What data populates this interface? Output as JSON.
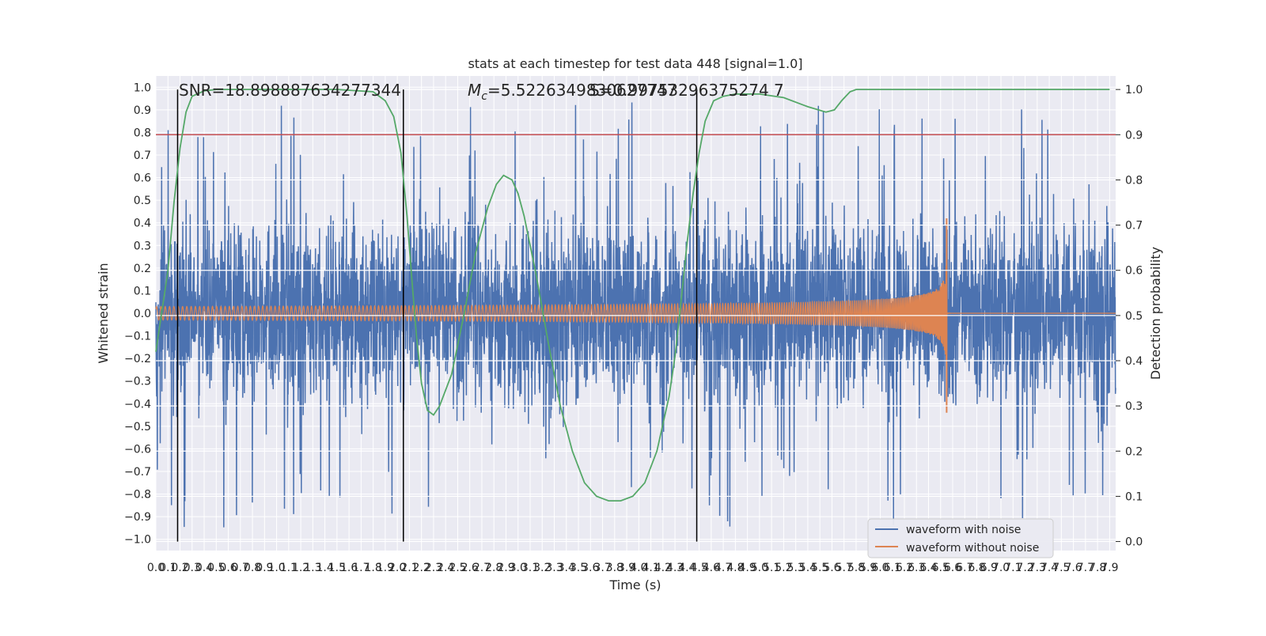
{
  "chart_data": {
    "type": "line",
    "title": "stats at each timestep for test data 448 [signal=1.0]",
    "xlabel": "Time (s)",
    "ylabel_left": "Whitened strain",
    "ylabel_right": "Detection probability",
    "xlim": [
      0.0,
      7.95
    ],
    "ylim_left": [
      -1.05,
      1.05
    ],
    "ylim_right": [
      -0.02,
      1.03
    ],
    "grid": true,
    "legend_position": "bottom-right",
    "x_ticks": [
      "0.0",
      "0.1",
      "0.2",
      "0.3",
      "0.4",
      "0.5",
      "0.6",
      "0.7",
      "0.8",
      "0.9",
      "1.0",
      "1.1",
      "1.2",
      "1.3",
      "1.4",
      "1.5",
      "1.6",
      "1.7",
      "1.8",
      "1.9",
      "2.0",
      "2.1",
      "2.2",
      "2.3",
      "2.4",
      "2.5",
      "2.6",
      "2.7",
      "2.8",
      "2.9",
      "3.0",
      "3.1",
      "3.2",
      "3.3",
      "3.4",
      "3.5",
      "3.6",
      "3.7",
      "3.8",
      "3.9",
      "4.0",
      "4.1",
      "4.2",
      "4.3",
      "4.4",
      "4.5",
      "4.6",
      "4.7",
      "4.8",
      "4.9",
      "5.0",
      "5.1",
      "5.2",
      "5.3",
      "5.4",
      "5.5",
      "5.6",
      "5.7",
      "5.8",
      "5.9",
      "6.0",
      "6.1",
      "6.2",
      "6.3",
      "6.4",
      "6.5",
      "6.6",
      "6.7",
      "6.8",
      "6.9",
      "7.0",
      "7.1",
      "7.2",
      "7.3",
      "7.4",
      "7.5",
      "7.6",
      "7.7",
      "7.8",
      "7.9"
    ],
    "y_ticks_left": [
      "1.0",
      "0.9",
      "0.8",
      "0.7",
      "0.6",
      "0.5",
      "0.4",
      "0.3",
      "0.2",
      "0.1",
      "0.0",
      "−0.1",
      "−0.2",
      "−0.3",
      "−0.4",
      "−0.5",
      "−0.6",
      "−0.7",
      "−0.8",
      "−0.9",
      "−1.0"
    ],
    "y_ticks_right": [
      "1.0",
      "0.9",
      "0.8",
      "0.7",
      "0.6",
      "0.5",
      "0.4",
      "0.3",
      "0.2",
      "0.1",
      "0.0"
    ],
    "annotations": {
      "snr": "SNR=18.898887634277344",
      "mc_prefix": "M",
      "mc_subscript": "c",
      "mc_value": "=5.5226349830627747",
      "overlap": "S=0.99753296375274 7"
    },
    "threshold_right": 0.9,
    "vertical_lines_x": [
      0.18,
      2.05,
      4.48
    ],
    "merger_time": 6.55,
    "series": [
      {
        "name": "waveform with noise",
        "color": "#4c72b0",
        "envelope_note": "dense whitened noise mostly within ±0.35, peaks near ±0.95"
      },
      {
        "name": "waveform without noise",
        "color": "#dd8452",
        "start_amplitude": 0.03,
        "peak_amplitude": 0.42,
        "peak_time": 6.55
      },
      {
        "name": "detection probability",
        "color": "#55a868",
        "axis": "right",
        "x": [
          0.0,
          0.1,
          0.15,
          0.2,
          0.25,
          0.3,
          0.4,
          0.5,
          0.7,
          1.0,
          1.5,
          1.8,
          1.9,
          1.97,
          2.03,
          2.08,
          2.12,
          2.16,
          2.2,
          2.25,
          2.3,
          2.35,
          2.45,
          2.55,
          2.65,
          2.75,
          2.82,
          2.88,
          2.95,
          3.0,
          3.05,
          3.15,
          3.25,
          3.35,
          3.45,
          3.55,
          3.65,
          3.75,
          3.85,
          3.95,
          4.05,
          4.15,
          4.25,
          4.3,
          4.35,
          4.4,
          4.45,
          4.5,
          4.55,
          4.62,
          4.7,
          4.8,
          5.0,
          5.2,
          5.4,
          5.55,
          5.62,
          5.68,
          5.75,
          5.8,
          5.85,
          6.0,
          6.5,
          7.0,
          7.5,
          7.9
        ],
        "values": [
          0.42,
          0.6,
          0.75,
          0.87,
          0.95,
          0.985,
          0.997,
          1.0,
          1.0,
          1.0,
          1.0,
          0.995,
          0.975,
          0.94,
          0.86,
          0.72,
          0.58,
          0.45,
          0.35,
          0.29,
          0.28,
          0.3,
          0.37,
          0.5,
          0.64,
          0.74,
          0.79,
          0.81,
          0.8,
          0.77,
          0.72,
          0.59,
          0.44,
          0.3,
          0.2,
          0.13,
          0.1,
          0.09,
          0.09,
          0.1,
          0.13,
          0.2,
          0.32,
          0.41,
          0.53,
          0.66,
          0.77,
          0.86,
          0.93,
          0.975,
          0.985,
          0.99,
          0.99,
          0.982,
          0.962,
          0.95,
          0.955,
          0.975,
          0.995,
          1.0,
          1.0,
          1.0,
          1.0,
          1.0,
          1.0,
          1.0
        ]
      }
    ]
  }
}
